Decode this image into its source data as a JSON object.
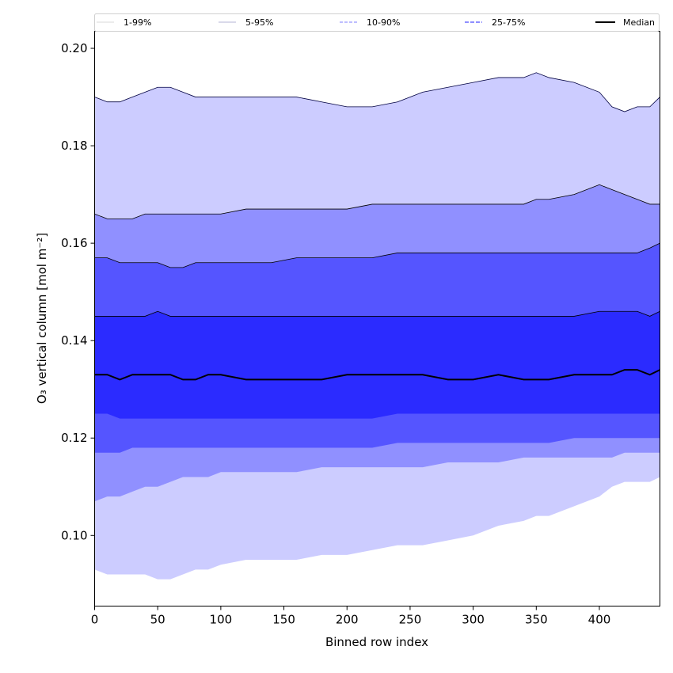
{
  "chart_data": {
    "type": "area",
    "title": "",
    "xlabel": "Binned row index",
    "ylabel": "O₃ vertical column [mol m⁻²]",
    "xlim": [
      0,
      448
    ],
    "ylim": [
      0.0855,
      0.2035
    ],
    "xticks": [
      0,
      50,
      100,
      150,
      200,
      250,
      300,
      350,
      400
    ],
    "yticks": [
      0.1,
      0.12,
      0.14,
      0.16,
      0.18,
      0.2
    ],
    "grid": false,
    "legend_position": "top",
    "x": [
      0,
      10,
      20,
      30,
      40,
      50,
      60,
      70,
      80,
      90,
      100,
      120,
      140,
      160,
      180,
      200,
      220,
      240,
      260,
      280,
      300,
      320,
      340,
      350,
      360,
      380,
      400,
      410,
      420,
      430,
      440,
      448
    ],
    "series": [
      {
        "name": "1-99%",
        "color": "#ccccff",
        "lower": [
          0.093,
          0.092,
          0.092,
          0.092,
          0.092,
          0.091,
          0.091,
          0.092,
          0.093,
          0.093,
          0.094,
          0.095,
          0.095,
          0.095,
          0.096,
          0.096,
          0.097,
          0.098,
          0.098,
          0.099,
          0.1,
          0.102,
          0.103,
          0.104,
          0.104,
          0.106,
          0.108,
          0.11,
          0.111,
          0.111,
          0.111,
          0.112
        ],
        "upper": [
          0.19,
          0.189,
          0.189,
          0.19,
          0.191,
          0.192,
          0.192,
          0.191,
          0.19,
          0.19,
          0.19,
          0.19,
          0.19,
          0.19,
          0.189,
          0.188,
          0.188,
          0.189,
          0.191,
          0.192,
          0.193,
          0.194,
          0.194,
          0.195,
          0.194,
          0.193,
          0.191,
          0.188,
          0.187,
          0.188,
          0.188,
          0.19
        ]
      },
      {
        "name": "5-95%",
        "color": "#9090ff",
        "lower": [
          0.107,
          0.108,
          0.108,
          0.109,
          0.11,
          0.11,
          0.111,
          0.112,
          0.112,
          0.112,
          0.113,
          0.113,
          0.113,
          0.113,
          0.114,
          0.114,
          0.114,
          0.114,
          0.114,
          0.115,
          0.115,
          0.115,
          0.116,
          0.116,
          0.116,
          0.116,
          0.116,
          0.116,
          0.117,
          0.117,
          0.117,
          0.117
        ],
        "upper": [
          0.166,
          0.165,
          0.165,
          0.165,
          0.166,
          0.166,
          0.166,
          0.166,
          0.166,
          0.166,
          0.166,
          0.167,
          0.167,
          0.167,
          0.167,
          0.167,
          0.168,
          0.168,
          0.168,
          0.168,
          0.168,
          0.168,
          0.168,
          0.169,
          0.169,
          0.17,
          0.172,
          0.171,
          0.17,
          0.169,
          0.168,
          0.168
        ]
      },
      {
        "name": "10-90%",
        "color": "#5555ff",
        "lower": [
          0.117,
          0.117,
          0.117,
          0.118,
          0.118,
          0.118,
          0.118,
          0.118,
          0.118,
          0.118,
          0.118,
          0.118,
          0.118,
          0.118,
          0.118,
          0.118,
          0.118,
          0.119,
          0.119,
          0.119,
          0.119,
          0.119,
          0.119,
          0.119,
          0.119,
          0.12,
          0.12,
          0.12,
          0.12,
          0.12,
          0.12,
          0.12
        ],
        "upper": [
          0.157,
          0.157,
          0.156,
          0.156,
          0.156,
          0.156,
          0.155,
          0.155,
          0.156,
          0.156,
          0.156,
          0.156,
          0.156,
          0.157,
          0.157,
          0.157,
          0.157,
          0.158,
          0.158,
          0.158,
          0.158,
          0.158,
          0.158,
          0.158,
          0.158,
          0.158,
          0.158,
          0.158,
          0.158,
          0.158,
          0.159,
          0.16
        ]
      },
      {
        "name": "25-75%",
        "color": "#2b2bff",
        "lower": [
          0.125,
          0.125,
          0.124,
          0.124,
          0.124,
          0.124,
          0.124,
          0.124,
          0.124,
          0.124,
          0.124,
          0.124,
          0.124,
          0.124,
          0.124,
          0.124,
          0.124,
          0.125,
          0.125,
          0.125,
          0.125,
          0.125,
          0.125,
          0.125,
          0.125,
          0.125,
          0.125,
          0.125,
          0.125,
          0.125,
          0.125,
          0.125
        ],
        "upper": [
          0.145,
          0.145,
          0.145,
          0.145,
          0.145,
          0.146,
          0.145,
          0.145,
          0.145,
          0.145,
          0.145,
          0.145,
          0.145,
          0.145,
          0.145,
          0.145,
          0.145,
          0.145,
          0.145,
          0.145,
          0.145,
          0.145,
          0.145,
          0.145,
          0.145,
          0.145,
          0.146,
          0.146,
          0.146,
          0.146,
          0.145,
          0.146
        ]
      },
      {
        "name": "Median",
        "color": "#000000",
        "values": [
          0.133,
          0.133,
          0.132,
          0.133,
          0.133,
          0.133,
          0.133,
          0.132,
          0.132,
          0.133,
          0.133,
          0.132,
          0.132,
          0.132,
          0.132,
          0.133,
          0.133,
          0.133,
          0.133,
          0.132,
          0.132,
          0.133,
          0.132,
          0.132,
          0.132,
          0.133,
          0.133,
          0.133,
          0.134,
          0.134,
          0.133,
          0.134
        ]
      }
    ]
  }
}
